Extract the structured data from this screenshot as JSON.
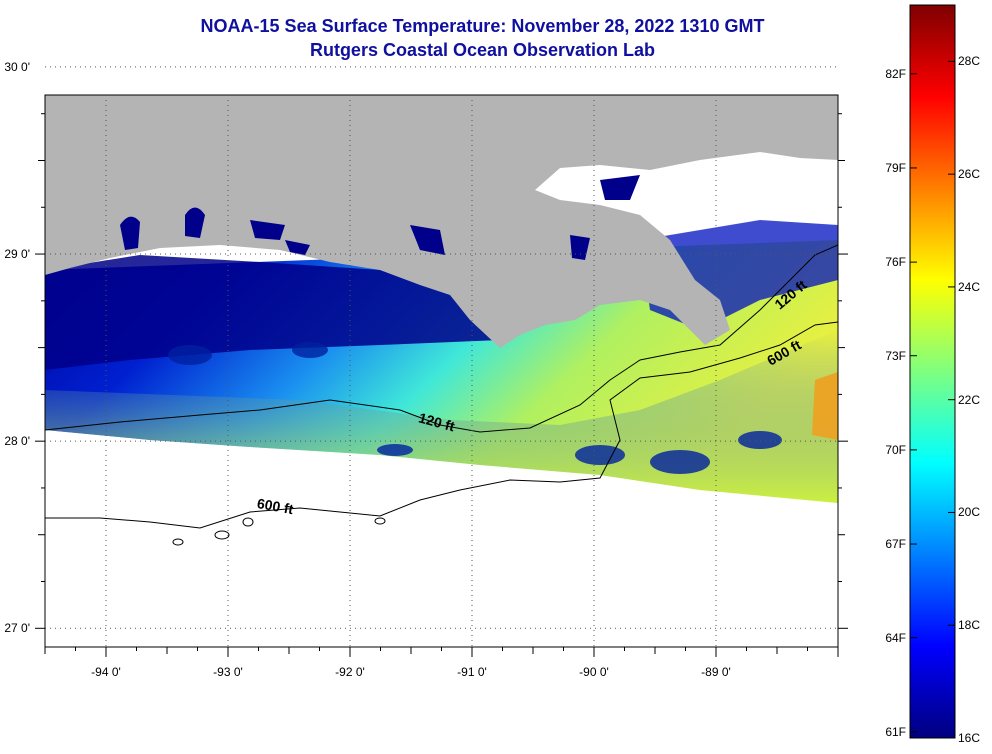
{
  "title": {
    "line1": "NOAA-15 Sea Surface Temperature:  November 28, 2022 1310 GMT",
    "line2": "Rutgers Coastal Ocean Observation Lab"
  },
  "map": {
    "lon_range": [
      -94.5,
      -88.0
    ],
    "lat_range": [
      26.9,
      29.85
    ],
    "grid": "dotted",
    "lon_ticks": [
      {
        "value": -94,
        "label": "-94 0'"
      },
      {
        "value": -93,
        "label": "-93 0'"
      },
      {
        "value": -92,
        "label": "-92 0'"
      },
      {
        "value": -91,
        "label": "-91 0'"
      },
      {
        "value": -90,
        "label": "-90 0'"
      },
      {
        "value": -89,
        "label": "-89 0'"
      }
    ],
    "lat_ticks": [
      {
        "value": 30,
        "label": "30 0'"
      },
      {
        "value": 29,
        "label": "29 0'"
      },
      {
        "value": 28,
        "label": "28 0'"
      },
      {
        "value": 27,
        "label": "27 0'"
      }
    ],
    "contours": [
      {
        "label": "120 ft",
        "labels_shown": 2
      },
      {
        "label": "600 ft",
        "labels_shown": 2
      }
    ],
    "land_color": "#b4b4b4",
    "no_data_color": "#ffffff"
  },
  "colorbar": {
    "range_c": [
      16,
      29
    ],
    "colors": [
      "#00007f",
      "#0000ff",
      "#007fff",
      "#00ffff",
      "#7fff7f",
      "#ffff00",
      "#ff7f00",
      "#ff0000",
      "#7f0000"
    ],
    "fahrenheit_labels": [
      {
        "temp_c": 16.11,
        "label": "61F"
      },
      {
        "temp_c": 17.78,
        "label": "64F"
      },
      {
        "temp_c": 19.44,
        "label": "67F"
      },
      {
        "temp_c": 21.11,
        "label": "70F"
      },
      {
        "temp_c": 22.78,
        "label": "73F"
      },
      {
        "temp_c": 24.44,
        "label": "76F"
      },
      {
        "temp_c": 26.11,
        "label": "79F"
      },
      {
        "temp_c": 27.78,
        "label": "82F"
      }
    ],
    "celsius_labels": [
      {
        "temp_c": 16,
        "label": "16C"
      },
      {
        "temp_c": 18,
        "label": "18C"
      },
      {
        "temp_c": 20,
        "label": "20C"
      },
      {
        "temp_c": 22,
        "label": "22C"
      },
      {
        "temp_c": 24,
        "label": "24C"
      },
      {
        "temp_c": 26,
        "label": "26C"
      },
      {
        "temp_c": 28,
        "label": "28C"
      }
    ]
  }
}
